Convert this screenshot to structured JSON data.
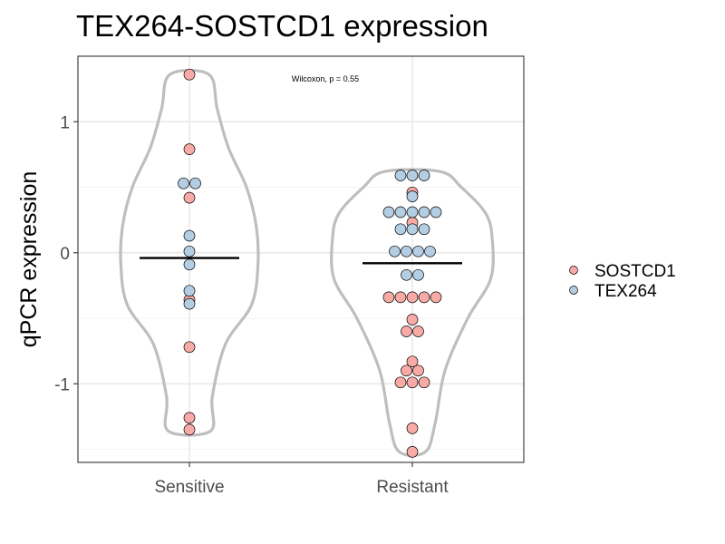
{
  "chart_data": {
    "type": "violin-dotplot",
    "title": "TEX264-SOSTCD1 expression",
    "xlabel": "",
    "ylabel": "qPCR expression",
    "categories": [
      "Sensitive",
      "Resistant"
    ],
    "ylim": [
      -1.6,
      1.5
    ],
    "yticks": [
      1,
      0,
      -1
    ],
    "ytick_labels": [
      "1",
      "0",
      "-1"
    ],
    "annotation": "Wilcoxon, p = 0.55",
    "grid": true,
    "legend_position": "right",
    "series": [
      {
        "name": "SOSTCD1",
        "color": "#f8aaa6",
        "points": [
          {
            "group": "Sensitive",
            "y": 1.36
          },
          {
            "group": "Sensitive",
            "y": 0.79
          },
          {
            "group": "Sensitive",
            "y": 0.42
          },
          {
            "group": "Sensitive",
            "y": -0.36
          },
          {
            "group": "Sensitive",
            "y": -0.72
          },
          {
            "group": "Sensitive",
            "y": -1.26
          },
          {
            "group": "Sensitive",
            "y": -1.35
          },
          {
            "group": "Resistant",
            "y": 0.46
          },
          {
            "group": "Resistant",
            "y": 0.23
          },
          {
            "group": "Resistant",
            "y": -0.34
          },
          {
            "group": "Resistant",
            "y": -0.34
          },
          {
            "group": "Resistant",
            "y": -0.34
          },
          {
            "group": "Resistant",
            "y": -0.34
          },
          {
            "group": "Resistant",
            "y": -0.34
          },
          {
            "group": "Resistant",
            "y": -0.51
          },
          {
            "group": "Resistant",
            "y": -0.6
          },
          {
            "group": "Resistant",
            "y": -0.6
          },
          {
            "group": "Resistant",
            "y": -0.83
          },
          {
            "group": "Resistant",
            "y": -0.9
          },
          {
            "group": "Resistant",
            "y": -0.9
          },
          {
            "group": "Resistant",
            "y": -0.99
          },
          {
            "group": "Resistant",
            "y": -0.99
          },
          {
            "group": "Resistant",
            "y": -0.99
          },
          {
            "group": "Resistant",
            "y": -1.34
          },
          {
            "group": "Resistant",
            "y": -1.52
          }
        ]
      },
      {
        "name": "TEX264",
        "color": "#b3cde3",
        "points": [
          {
            "group": "Sensitive",
            "y": 0.53
          },
          {
            "group": "Sensitive",
            "y": 0.53
          },
          {
            "group": "Sensitive",
            "y": 0.13
          },
          {
            "group": "Sensitive",
            "y": 0.01
          },
          {
            "group": "Sensitive",
            "y": -0.09
          },
          {
            "group": "Sensitive",
            "y": -0.29
          },
          {
            "group": "Sensitive",
            "y": -0.39
          },
          {
            "group": "Resistant",
            "y": 0.59
          },
          {
            "group": "Resistant",
            "y": 0.59
          },
          {
            "group": "Resistant",
            "y": 0.59
          },
          {
            "group": "Resistant",
            "y": 0.43
          },
          {
            "group": "Resistant",
            "y": 0.31
          },
          {
            "group": "Resistant",
            "y": 0.31
          },
          {
            "group": "Resistant",
            "y": 0.31
          },
          {
            "group": "Resistant",
            "y": 0.31
          },
          {
            "group": "Resistant",
            "y": 0.31
          },
          {
            "group": "Resistant",
            "y": 0.18
          },
          {
            "group": "Resistant",
            "y": 0.18
          },
          {
            "group": "Resistant",
            "y": 0.18
          },
          {
            "group": "Resistant",
            "y": 0.01
          },
          {
            "group": "Resistant",
            "y": 0.01
          },
          {
            "group": "Resistant",
            "y": 0.01
          },
          {
            "group": "Resistant",
            "y": 0.01
          },
          {
            "group": "Resistant",
            "y": -0.17
          },
          {
            "group": "Resistant",
            "y": -0.17
          }
        ]
      }
    ],
    "medians": [
      {
        "group": "Sensitive",
        "y": -0.04
      },
      {
        "group": "Resistant",
        "y": -0.08
      }
    ],
    "violins": [
      {
        "group": "Sensitive",
        "profile": [
          [
            -1.36,
            0.13
          ],
          [
            -1.1,
            0.14
          ],
          [
            -0.7,
            0.22
          ],
          [
            -0.4,
            0.38
          ],
          [
            -0.1,
            0.42
          ],
          [
            0.2,
            0.41
          ],
          [
            0.5,
            0.35
          ],
          [
            0.8,
            0.24
          ],
          [
            1.1,
            0.17
          ],
          [
            1.36,
            0.12
          ]
        ]
      },
      {
        "group": "Resistant",
        "profile": [
          [
            -1.52,
            0.08
          ],
          [
            -1.3,
            0.14
          ],
          [
            -0.9,
            0.2
          ],
          [
            -0.5,
            0.34
          ],
          [
            -0.2,
            0.48
          ],
          [
            0.1,
            0.49
          ],
          [
            0.3,
            0.45
          ],
          [
            0.5,
            0.3
          ],
          [
            0.62,
            0.17
          ]
        ]
      }
    ]
  }
}
